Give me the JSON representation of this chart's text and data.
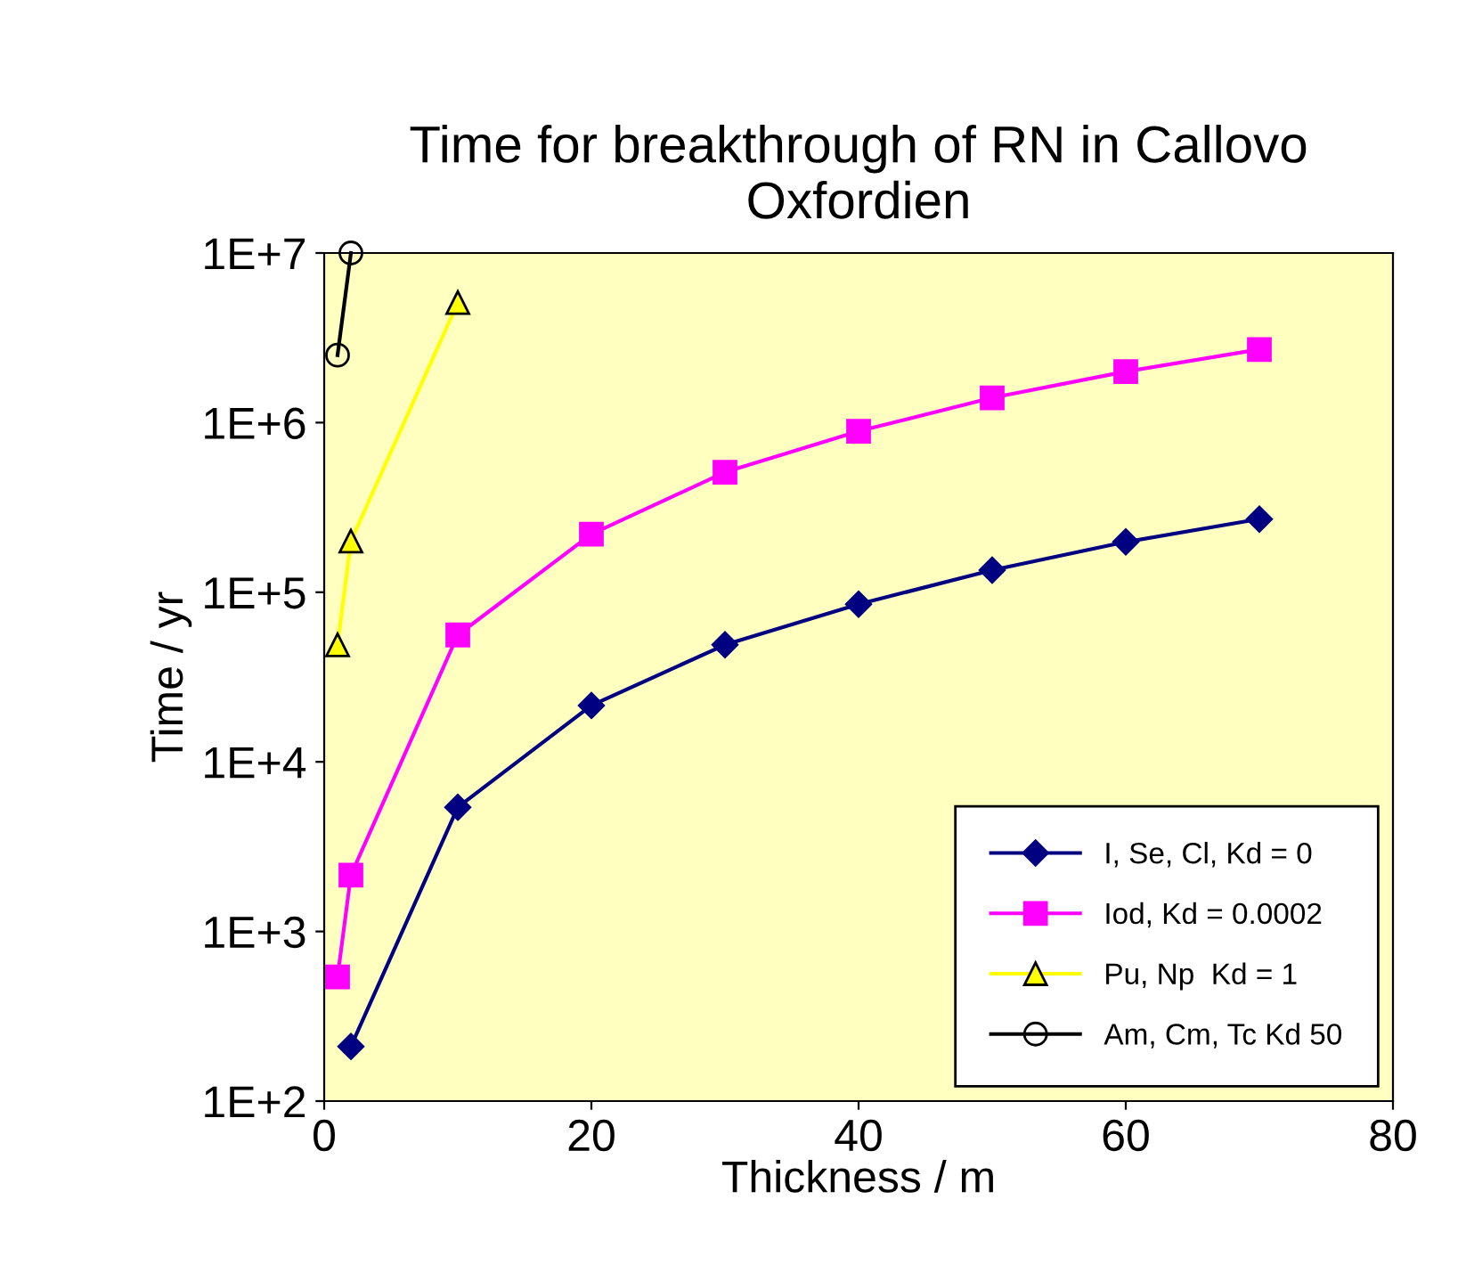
{
  "chart_data": {
    "type": "line",
    "title": "Time for breakthrough of RN in Callovo\nOxfordien",
    "xlabel": "Thickness / m",
    "ylabel": "Time / yr",
    "log": "y",
    "xlim": [
      0,
      80
    ],
    "xticks": [
      0,
      20,
      40,
      60,
      80
    ],
    "ylim": [
      100,
      10000000
    ],
    "yticks": [
      {
        "value": 100,
        "label": "1E+2"
      },
      {
        "value": 1000,
        "label": "1E+3"
      },
      {
        "value": 10000,
        "label": "1E+4"
      },
      {
        "value": 100000,
        "label": "1E+5"
      },
      {
        "value": 1000000,
        "label": "1E+6"
      },
      {
        "value": 10000000,
        "label": "1E+7"
      }
    ],
    "grid": false,
    "legend": "bottom right",
    "line_style": "solid",
    "series": [
      {
        "name": "I, Se, Cl, Kd = 0",
        "color": "#000080",
        "marker": "diamond",
        "x": [
          2,
          10,
          20,
          30,
          40,
          50,
          60,
          70
        ],
        "values": [
          210,
          5400,
          21500,
          49000,
          85000,
          135000,
          198000,
          270000
        ]
      },
      {
        "name": "Iod, Kd = 0.0002",
        "color": "#ff00ff",
        "marker": "square",
        "x": [
          1,
          2,
          10,
          20,
          30,
          40,
          50,
          60,
          70
        ],
        "values": [
          540,
          2150,
          56000,
          220000,
          510000,
          890000,
          1400000,
          2000000,
          2700000
        ]
      },
      {
        "name": "Pu, Np  Kd = 1",
        "color": "#ffff00",
        "marker": "triangle",
        "x": [
          1,
          2,
          10
        ],
        "values": [
          49000,
          200000,
          5100000
        ]
      },
      {
        "name": "Am, Cm, Tc Kd 50",
        "color": "#000000",
        "marker": "circle",
        "x": [
          1,
          2
        ],
        "values": [
          2500000,
          10000000
        ]
      }
    ]
  }
}
